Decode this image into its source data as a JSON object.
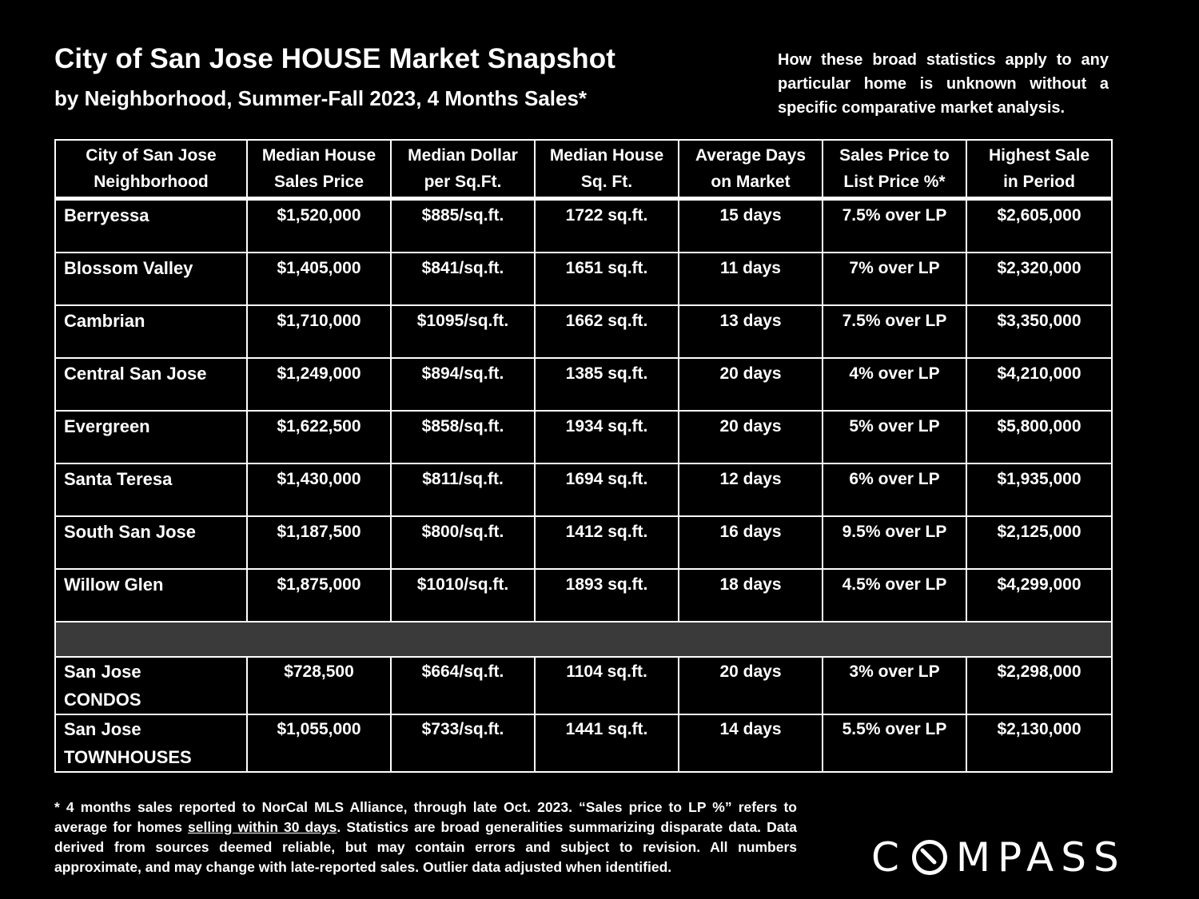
{
  "header": {
    "title": "City of San Jose HOUSE Market Snapshot",
    "subtitle": "by Neighborhood, Summer-Fall 2023, 4 Months Sales*",
    "disclaimer": "How these broad statistics apply to any particular home is unknown without a specific comparative market analysis."
  },
  "table": {
    "headers": [
      [
        "City of San Jose",
        "Neighborhood"
      ],
      [
        "Median House",
        "Sales Price"
      ],
      [
        "Median Dollar",
        "per Sq.Ft."
      ],
      [
        "Median House",
        "Sq. Ft."
      ],
      [
        "Average Days",
        "on Market"
      ],
      [
        "Sales Price to",
        "List Price %*"
      ],
      [
        "Highest Sale",
        "in Period"
      ]
    ],
    "rows": [
      [
        "Berryessa",
        "$1,520,000",
        "$885/sq.ft.",
        "1722 sq.ft.",
        "15 days",
        "7.5% over LP",
        "$2,605,000"
      ],
      [
        "Blossom Valley",
        "$1,405,000",
        "$841/sq.ft.",
        "1651 sq.ft.",
        "11 days",
        "7% over LP",
        "$2,320,000"
      ],
      [
        "Cambrian",
        "$1,710,000",
        "$1095/sq.ft.",
        "1662 sq.ft.",
        "13 days",
        "7.5% over LP",
        "$3,350,000"
      ],
      [
        "Central San Jose",
        "$1,249,000",
        "$894/sq.ft.",
        "1385 sq.ft.",
        "20 days",
        "4% over LP",
        "$4,210,000"
      ],
      [
        "Evergreen",
        "$1,622,500",
        "$858/sq.ft.",
        "1934 sq.ft.",
        "20 days",
        "5% over LP",
        "$5,800,000"
      ],
      [
        "Santa Teresa",
        "$1,430,000",
        "$811/sq.ft.",
        "1694 sq.ft.",
        "12 days",
        "6% over LP",
        "$1,935,000"
      ],
      [
        "South San Jose",
        "$1,187,500",
        "$800/sq.ft.",
        "1412 sq.ft.",
        "16 days",
        "9.5% over LP",
        "$2,125,000"
      ],
      [
        "Willow Glen",
        "$1,875,000",
        "$1010/sq.ft.",
        "1893 sq.ft.",
        "18 days",
        "4.5% over LP",
        "$4,299,000"
      ]
    ],
    "sub_rows": [
      [
        "San Jose",
        "CONDOS",
        "$728,500",
        "$664/sq.ft.",
        "1104 sq.ft.",
        "20 days",
        "3% over LP",
        "$2,298,000"
      ],
      [
        "San Jose",
        "TOWNHOUSES",
        "$1,055,000",
        "$733/sq.ft.",
        "1441 sq.ft.",
        "14 days",
        "5.5% over LP",
        "$2,130,000"
      ]
    ]
  },
  "footnote": {
    "part1": "* 4 months sales reported to NorCal MLS Alliance, through late Oct. 2023. “Sales price to LP %” refers to average for homes ",
    "underlined": "selling within 30 days",
    "part2": ". Statistics are broad generalities summarizing disparate data. Data derived from sources deemed reliable, but may contain errors and subject to revision. All numbers approximate, and may change with late-reported sales. Outlier data adjusted when identified."
  },
  "logo": {
    "letter_c": "C",
    "letters_rest": "MPASS",
    "icon": "compass-o-icon"
  }
}
